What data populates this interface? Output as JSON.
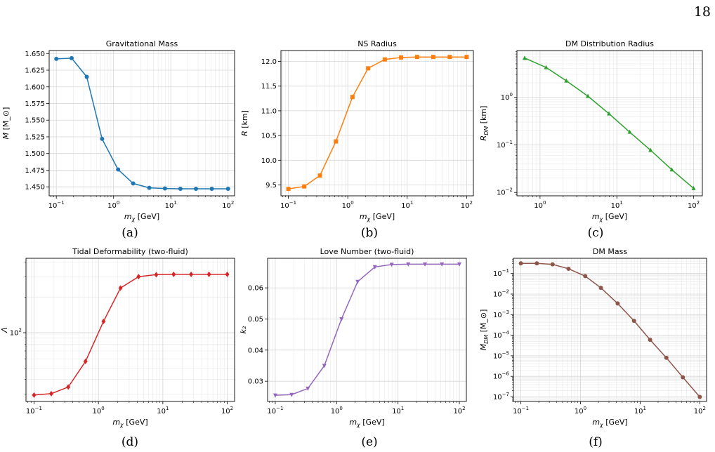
{
  "page_number": "18",
  "chart_data": [
    {
      "id": "a",
      "caption": "(a)",
      "type": "line",
      "title": "Gravitational Mass",
      "xlabel": "m_χ [GeV]",
      "ylabel": "M [M_⊙]",
      "xscale": "log",
      "yscale": "linear",
      "xlim": [
        0.075,
        130
      ],
      "ylim": [
        1.4365,
        1.6545
      ],
      "xticks": [
        {
          "v": 0.1,
          "b": "10",
          "e": "−1"
        },
        {
          "v": 1,
          "b": "10",
          "e": "0"
        },
        {
          "v": 10,
          "b": "10",
          "e": "1"
        },
        {
          "v": 100,
          "b": "10",
          "e": "2"
        }
      ],
      "yticks": [
        {
          "v": 1.45,
          "label": "1.450"
        },
        {
          "v": 1.475,
          "label": "1.475"
        },
        {
          "v": 1.5,
          "label": "1.500"
        },
        {
          "v": 1.525,
          "label": "1.525"
        },
        {
          "v": 1.55,
          "label": "1.550"
        },
        {
          "v": 1.575,
          "label": "1.575"
        },
        {
          "v": 1.6,
          "label": "1.600"
        },
        {
          "v": 1.625,
          "label": "1.625"
        },
        {
          "v": 1.65,
          "label": "1.650"
        }
      ],
      "grid": true,
      "marker": "circle",
      "color": "#1f77b4",
      "series": [
        {
          "x": [
            0.1,
            0.185,
            0.34,
            0.63,
            1.2,
            2.2,
            4.2,
            7.9,
            14.7,
            27.5,
            52,
            100
          ],
          "y": [
            1.642,
            1.643,
            1.615,
            1.522,
            1.476,
            1.455,
            1.4485,
            1.4475,
            1.447,
            1.447,
            1.447,
            1.447
          ]
        }
      ]
    },
    {
      "id": "b",
      "caption": "(b)",
      "type": "line",
      "title": "NS Radius",
      "xlabel": "m_χ [GeV]",
      "ylabel": "R [km]",
      "xscale": "log",
      "yscale": "linear",
      "xlim": [
        0.075,
        130
      ],
      "ylim": [
        9.28,
        12.22
      ],
      "xticks": [
        {
          "v": 0.1,
          "b": "10",
          "e": "−1"
        },
        {
          "v": 1,
          "b": "10",
          "e": "0"
        },
        {
          "v": 10,
          "b": "10",
          "e": "1"
        },
        {
          "v": 100,
          "b": "10",
          "e": "2"
        }
      ],
      "yticks": [
        {
          "v": 9.5,
          "label": "9.5"
        },
        {
          "v": 10.0,
          "label": "10.0"
        },
        {
          "v": 10.5,
          "label": "10.5"
        },
        {
          "v": 11.0,
          "label": "11.0"
        },
        {
          "v": 11.5,
          "label": "11.5"
        },
        {
          "v": 12.0,
          "label": "12.0"
        }
      ],
      "grid": true,
      "marker": "square",
      "color": "#ff7f0e",
      "series": [
        {
          "x": [
            0.1,
            0.185,
            0.34,
            0.63,
            1.2,
            2.2,
            4.2,
            7.9,
            14.7,
            27.5,
            52,
            100
          ],
          "y": [
            9.42,
            9.47,
            9.69,
            10.38,
            11.28,
            11.86,
            12.04,
            12.08,
            12.09,
            12.09,
            12.09,
            12.09
          ]
        }
      ]
    },
    {
      "id": "c",
      "caption": "(c)",
      "type": "line",
      "title": "DM Distribution Radius",
      "xlabel": "m_χ [GeV]",
      "ylabel": "R_DM [km]",
      "xscale": "log",
      "yscale": "log",
      "xlim": [
        0.5,
        130
      ],
      "ylim": [
        0.0085,
        9.5
      ],
      "xticks": [
        {
          "v": 1,
          "b": "10",
          "e": "0"
        },
        {
          "v": 10,
          "b": "10",
          "e": "1"
        },
        {
          "v": 100,
          "b": "10",
          "e": "2"
        }
      ],
      "yticks": [
        {
          "v": 0.01,
          "b": "10",
          "e": "−2"
        },
        {
          "v": 0.1,
          "b": "10",
          "e": "−1"
        },
        {
          "v": 1,
          "b": "10",
          "e": "0"
        }
      ],
      "grid": true,
      "marker": "triangle-up",
      "color": "#2ca02c",
      "series": [
        {
          "x": [
            0.63,
            1.2,
            2.2,
            4.2,
            7.9,
            14.7,
            27.5,
            52,
            100
          ],
          "y": [
            6.6,
            4.2,
            2.2,
            1.05,
            0.45,
            0.185,
            0.077,
            0.03,
            0.0122
          ]
        }
      ]
    },
    {
      "id": "d",
      "caption": "(d)",
      "type": "line",
      "title": "Tidal Deformability (two-fluid)",
      "xlabel": "m_χ [GeV]",
      "ylabel": "Λ",
      "xscale": "log",
      "yscale": "log",
      "xlim": [
        0.075,
        130
      ],
      "ylim": [
        26,
        430
      ],
      "xticks": [
        {
          "v": 0.1,
          "b": "10",
          "e": "−1"
        },
        {
          "v": 1,
          "b": "10",
          "e": "0"
        },
        {
          "v": 10,
          "b": "10",
          "e": "1"
        },
        {
          "v": 100,
          "b": "10",
          "e": "2"
        }
      ],
      "yticks": [
        {
          "v": 100,
          "b": "10",
          "e": "2"
        }
      ],
      "grid": true,
      "marker": "diamond",
      "color": "#d62728",
      "series": [
        {
          "x": [
            0.1,
            0.185,
            0.34,
            0.63,
            1.2,
            2.2,
            4.2,
            7.9,
            14.7,
            27.5,
            52,
            100
          ],
          "y": [
            29.5,
            30.3,
            34.5,
            57,
            125,
            240,
            300,
            312,
            314,
            314,
            314,
            314
          ]
        }
      ]
    },
    {
      "id": "e",
      "caption": "(e)",
      "type": "line",
      "title": "Love Number (two-fluid)",
      "xlabel": "m_χ [GeV]",
      "ylabel": "k₂",
      "xscale": "log",
      "yscale": "linear",
      "xlim": [
        0.075,
        130
      ],
      "ylim": [
        0.0235,
        0.0695
      ],
      "xticks": [
        {
          "v": 0.1,
          "b": "10",
          "e": "−1"
        },
        {
          "v": 1,
          "b": "10",
          "e": "0"
        },
        {
          "v": 10,
          "b": "10",
          "e": "1"
        },
        {
          "v": 100,
          "b": "10",
          "e": "2"
        }
      ],
      "yticks": [
        {
          "v": 0.03,
          "label": "0.03"
        },
        {
          "v": 0.04,
          "label": "0.04"
        },
        {
          "v": 0.05,
          "label": "0.05"
        },
        {
          "v": 0.06,
          "label": "0.06"
        }
      ],
      "grid": true,
      "marker": "triangle-down",
      "color": "#9467bd",
      "series": [
        {
          "x": [
            0.1,
            0.185,
            0.34,
            0.63,
            1.2,
            2.2,
            4.2,
            7.9,
            14.7,
            27.5,
            52,
            100
          ],
          "y": [
            0.0255,
            0.0257,
            0.0277,
            0.035,
            0.05,
            0.062,
            0.0667,
            0.0675,
            0.0676,
            0.0676,
            0.0676,
            0.0676
          ]
        }
      ]
    },
    {
      "id": "f",
      "caption": "(f)",
      "type": "line",
      "title": "DM Mass",
      "xlabel": "m_χ [GeV]",
      "ylabel": "M_DM [M_⊙]",
      "xscale": "log",
      "yscale": "log",
      "xlim": [
        0.075,
        130
      ],
      "ylim": [
        6e-08,
        0.55
      ],
      "xticks": [
        {
          "v": 0.1,
          "b": "10",
          "e": "−1"
        },
        {
          "v": 1,
          "b": "10",
          "e": "0"
        },
        {
          "v": 10,
          "b": "10",
          "e": "1"
        },
        {
          "v": 100,
          "b": "10",
          "e": "2"
        }
      ],
      "yticks": [
        {
          "v": 1e-07,
          "b": "10",
          "e": "−7"
        },
        {
          "v": 1e-06,
          "b": "10",
          "e": "−6"
        },
        {
          "v": 1e-05,
          "b": "10",
          "e": "−5"
        },
        {
          "v": 0.0001,
          "b": "10",
          "e": "−4"
        },
        {
          "v": 0.001,
          "b": "10",
          "e": "−3"
        },
        {
          "v": 0.01,
          "b": "10",
          "e": "−2"
        },
        {
          "v": 0.1,
          "b": "10",
          "e": "−1"
        }
      ],
      "grid": true,
      "marker": "circle",
      "color": "#8c564b",
      "series": [
        {
          "x": [
            0.1,
            0.185,
            0.34,
            0.63,
            1.2,
            2.2,
            4.2,
            7.9,
            14.7,
            27.5,
            52,
            100
          ],
          "y": [
            0.31,
            0.31,
            0.28,
            0.17,
            0.075,
            0.02,
            0.0035,
            0.0005,
            6e-05,
            8e-06,
            9e-07,
            1e-07
          ]
        }
      ]
    }
  ]
}
